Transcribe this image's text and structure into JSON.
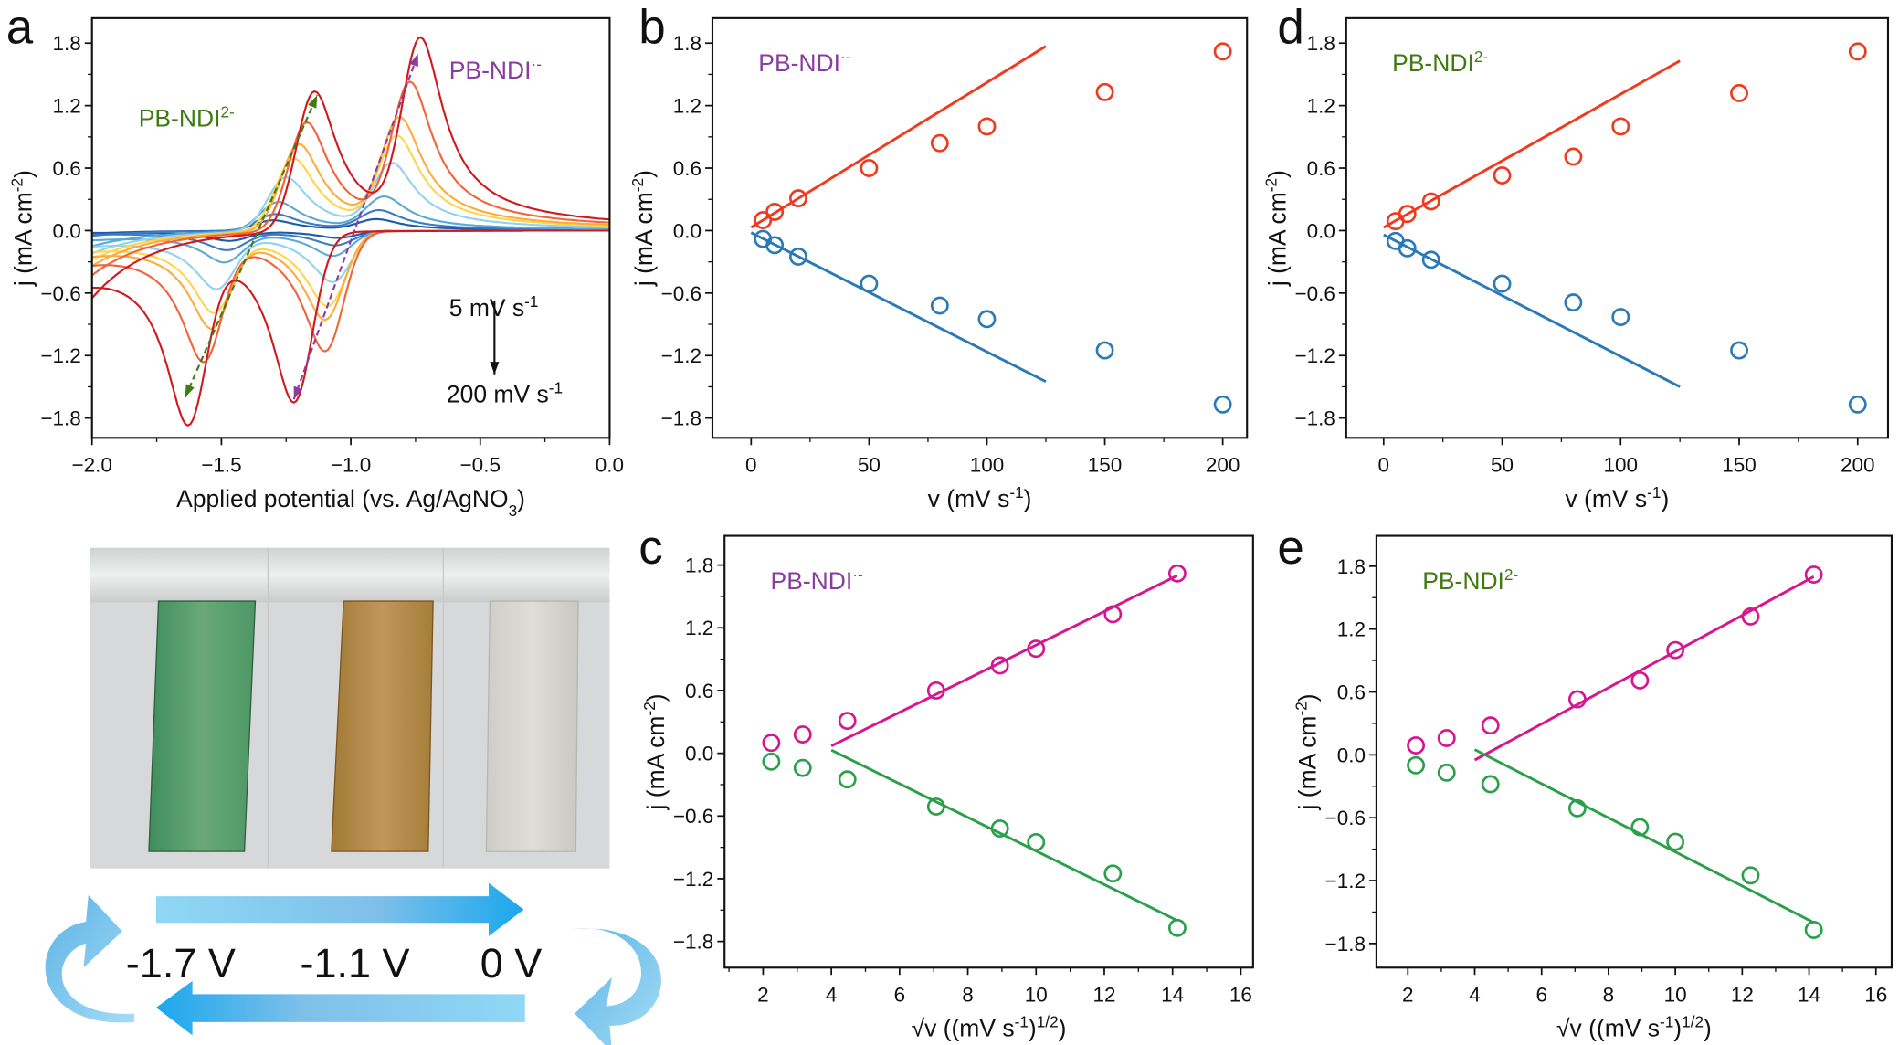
{
  "panel_letters": {
    "a": "a",
    "b": "b",
    "c": "c",
    "d": "d",
    "e": "e"
  },
  "photo": {
    "colors": {
      "reduced_2": "#4e9a6a",
      "reduced_1": "#b58a45",
      "neutral": "#d6d4cf"
    },
    "cycle_labels": [
      "-1.7 V",
      "-1.1 V",
      "0 V"
    ]
  },
  "chart_data": [
    {
      "id": "a",
      "type": "line",
      "title": "",
      "xlabel": {
        "text": "Applied potential (vs. Ag/AgNO",
        "sub": "3",
        "tail": ")"
      },
      "ylabel": {
        "text": "j (mA cm",
        "sup": "-2",
        "tail": ")"
      },
      "xlim": [
        -2.0,
        0.0
      ],
      "ylim": [
        -1.99,
        2.04
      ],
      "xticks": [
        -2.0,
        -1.5,
        -1.0,
        -0.5,
        0.0
      ],
      "xticklabels": [
        "−2.0",
        "−1.5",
        "−1.0",
        "−0.5",
        "0.0"
      ],
      "yticks": [
        1.8,
        1.2,
        0.6,
        0.0,
        -0.6,
        -1.2,
        -1.8
      ],
      "yticklabels": [
        "1.8",
        "1.2",
        "0.6",
        "0.0",
        "−0.6",
        "−1.2",
        "−1.8"
      ],
      "scan_rates_mV_s": [
        5,
        10,
        20,
        50,
        80,
        100,
        150,
        200
      ],
      "series_colors": [
        "#1f5aa6",
        "#3b7cc2",
        "#5aa9d9",
        "#8fd3ee",
        "#ffd54a",
        "#ffab3a",
        "#f2633a",
        "#d1181c"
      ],
      "anodic_peak1": {
        "E": [
          -1.3,
          -1.29,
          -1.28,
          -1.25,
          -1.22,
          -1.2,
          -1.17,
          -1.14
        ],
        "j": [
          0.1,
          0.16,
          0.28,
          0.52,
          0.7,
          0.84,
          1.05,
          1.35
        ]
      },
      "anodic_peak2": {
        "E": [
          -0.9,
          -0.89,
          -0.87,
          -0.84,
          -0.82,
          -0.81,
          -0.77,
          -0.73
        ],
        "j": [
          0.1,
          0.18,
          0.3,
          0.6,
          0.84,
          1.0,
          1.32,
          1.72
        ]
      },
      "cathodic_peak1": {
        "E": [
          -1.47,
          -1.48,
          -1.49,
          -1.52,
          -1.53,
          -1.54,
          -1.57,
          -1.63
        ],
        "j": [
          -0.09,
          -0.17,
          -0.27,
          -0.5,
          -0.7,
          -0.83,
          -1.12,
          -1.62
        ]
      },
      "cathodic_peak2": {
        "E": [
          -1.05,
          -1.06,
          -1.07,
          -1.07,
          -1.09,
          -1.1,
          -1.1,
          -1.22
        ],
        "j": [
          -0.07,
          -0.14,
          -0.24,
          -0.49,
          -0.72,
          -0.85,
          -1.15,
          -1.63
        ]
      },
      "start_current": [
        -0.03,
        -0.05,
        -0.15,
        -0.22,
        -0.28,
        -0.34,
        -0.43,
        -0.65
      ],
      "annotations": [
        {
          "text": "PB-NDI",
          "sup": "2-",
          "color": "#3f7a12",
          "at": [
            -1.82,
            1.0
          ]
        },
        {
          "text": "PB-NDI",
          "sup": "·-",
          "color": "#8a3d9e",
          "at": [
            -0.62,
            1.46
          ]
        },
        {
          "text": "5 mV s",
          "sup": "-1",
          "color": "#111111",
          "at": [
            -0.62,
            -0.82
          ]
        },
        {
          "text": "200 mV s",
          "sup": "-1",
          "color": "#111111",
          "at": [
            -0.63,
            -1.65
          ]
        }
      ],
      "arrows": [
        {
          "from": [
            -1.64,
            -1.6
          ],
          "to": [
            -1.13,
            1.3
          ],
          "color": "#3f7a12",
          "dashed": true
        },
        {
          "from": [
            -1.22,
            -1.62
          ],
          "to": [
            -0.74,
            1.7
          ],
          "color": "#8a3d9e",
          "dashed": true
        },
        {
          "from": [
            -0.445,
            -0.67
          ],
          "to": [
            -0.445,
            -1.38
          ],
          "color": "#111111",
          "dashed": false
        }
      ]
    },
    {
      "id": "b",
      "type": "scatter",
      "xlabel": {
        "text": "v (mV s",
        "sup": "-1",
        "tail": ")"
      },
      "ylabel": {
        "text": "j (mA cm",
        "sup": "-2",
        "tail": ")"
      },
      "xlim": [
        -16.4,
        210.3
      ],
      "ylim": [
        -1.99,
        2.04
      ],
      "xticks": [
        0,
        50,
        100,
        150,
        200
      ],
      "xticklabels": [
        "0",
        "50",
        "100",
        "150",
        "200"
      ],
      "yticks": [
        1.8,
        1.2,
        0.6,
        0.0,
        -0.6,
        -1.2,
        -1.8
      ],
      "yticklabels": [
        "1.8",
        "1.2",
        "0.6",
        "0.0",
        "−0.6",
        "−1.2",
        "−1.8"
      ],
      "annotation": {
        "text": "PB-NDI",
        "sup": "·-",
        "color": "#8a3d9e"
      },
      "x": [
        5,
        10,
        20,
        50,
        80,
        100,
        150,
        200
      ],
      "series": [
        {
          "name": "anodic",
          "color": "#f03a1f",
          "values": [
            0.1,
            0.18,
            0.31,
            0.6,
            0.84,
            1.0,
            1.33,
            1.72
          ],
          "fit": [
            [
              0,
              0.03
            ],
            [
              125,
              1.77
            ]
          ]
        },
        {
          "name": "cathodic",
          "color": "#2a7ab8",
          "values": [
            -0.08,
            -0.14,
            -0.25,
            -0.51,
            -0.72,
            -0.85,
            -1.15,
            -1.67
          ],
          "fit": [
            [
              0,
              -0.02
            ],
            [
              125,
              -1.45
            ]
          ]
        }
      ]
    },
    {
      "id": "c",
      "type": "scatter",
      "xlabel": {
        "text": "√v ((mV s",
        "sup": "-1",
        "tail": ")",
        "sup2": "1/2",
        "tail2": ")"
      },
      "ylabel": {
        "text": "j (mA cm",
        "sup": "-2",
        "tail": ")"
      },
      "xlim": [
        0.87,
        16.36
      ],
      "ylim": [
        -2.05,
        2.08
      ],
      "xticks": [
        2,
        4,
        6,
        8,
        10,
        12,
        14,
        16
      ],
      "xticklabels": [
        "2",
        "4",
        "6",
        "8",
        "10",
        "12",
        "14",
        "16"
      ],
      "yticks": [
        1.8,
        1.2,
        0.6,
        0.0,
        -0.6,
        -1.2,
        -1.8
      ],
      "yticklabels": [
        "1.8",
        "1.2",
        "0.6",
        "0.0",
        "−0.6",
        "−1.2",
        "−1.8"
      ],
      "annotation": {
        "text": "PB-NDI",
        "sup": "·-",
        "color": "#8a3d9e"
      },
      "x": [
        2.24,
        3.16,
        4.47,
        7.07,
        8.94,
        10.0,
        12.25,
        14.14
      ],
      "series": [
        {
          "name": "anodic",
          "color": "#d6168f",
          "values": [
            0.1,
            0.18,
            0.31,
            0.6,
            0.84,
            1.0,
            1.33,
            1.72
          ],
          "fit": [
            [
              4,
              0.07
            ],
            [
              14.14,
              1.7
            ]
          ]
        },
        {
          "name": "cathodic",
          "color": "#2aa04a",
          "values": [
            -0.08,
            -0.14,
            -0.25,
            -0.51,
            -0.72,
            -0.85,
            -1.15,
            -1.67
          ],
          "fit": [
            [
              4,
              0.03
            ],
            [
              14.14,
              -1.6
            ]
          ]
        }
      ]
    },
    {
      "id": "d",
      "type": "scatter",
      "xlabel": {
        "text": "v (mV s",
        "sup": "-1",
        "tail": ")"
      },
      "ylabel": {
        "text": "j (mA cm",
        "sup": "-2",
        "tail": ")"
      },
      "xlim": [
        -15.8,
        212.8
      ],
      "ylim": [
        -1.99,
        2.04
      ],
      "xticks": [
        0,
        50,
        100,
        150,
        200
      ],
      "xticklabels": [
        "0",
        "50",
        "100",
        "150",
        "200"
      ],
      "yticks": [
        1.8,
        1.2,
        0.6,
        0.0,
        -0.6,
        -1.2,
        -1.8
      ],
      "yticklabels": [
        "1.8",
        "1.2",
        "0.6",
        "0.0",
        "−0.6",
        "−1.2",
        "−1.8"
      ],
      "annotation": {
        "text": "PB-NDI",
        "sup": "2-",
        "color": "#3f7a12"
      },
      "x": [
        5,
        10,
        20,
        50,
        80,
        100,
        150,
        200
      ],
      "series": [
        {
          "name": "anodic",
          "color": "#f03a1f",
          "values": [
            0.09,
            0.16,
            0.28,
            0.53,
            0.71,
            1.0,
            1.32,
            1.72
          ],
          "fit": [
            [
              0,
              0.03
            ],
            [
              125,
              1.63
            ]
          ]
        },
        {
          "name": "cathodic",
          "color": "#2a7ab8",
          "values": [
            -0.1,
            -0.17,
            -0.28,
            -0.51,
            -0.69,
            -0.83,
            -1.15,
            -1.67
          ],
          "fit": [
            [
              0,
              -0.04
            ],
            [
              125,
              -1.5
            ]
          ]
        }
      ]
    },
    {
      "id": "e",
      "type": "scatter",
      "xlabel": {
        "text": "√v ((mV s",
        "sup": "-1",
        "tail": ")",
        "sup2": "1/2",
        "tail2": ")"
      },
      "ylabel": {
        "text": "j (mA cm",
        "sup": "-2",
        "tail": ")"
      },
      "xlim": [
        1.06,
        16.47
      ],
      "ylim": [
        -2.03,
        2.09
      ],
      "xticks": [
        2,
        4,
        6,
        8,
        10,
        12,
        14,
        16
      ],
      "xticklabels": [
        "2",
        "4",
        "6",
        "8",
        "10",
        "12",
        "14",
        "16"
      ],
      "yticks": [
        1.8,
        1.2,
        0.6,
        0.0,
        -0.6,
        -1.2,
        -1.8
      ],
      "yticklabels": [
        "1.8",
        "1.2",
        "0.6",
        "0.0",
        "−0.6",
        "−1.2",
        "−1.8"
      ],
      "annotation": {
        "text": "PB-NDI",
        "sup": "2-",
        "color": "#3f7a12"
      },
      "x": [
        2.24,
        3.16,
        4.47,
        7.07,
        8.94,
        10.0,
        12.25,
        14.14
      ],
      "series": [
        {
          "name": "anodic",
          "color": "#d6168f",
          "values": [
            0.09,
            0.16,
            0.28,
            0.53,
            0.71,
            1.0,
            1.32,
            1.72
          ],
          "fit": [
            [
              4,
              -0.05
            ],
            [
              14.14,
              1.7
            ]
          ]
        },
        {
          "name": "cathodic",
          "color": "#2aa04a",
          "values": [
            -0.1,
            -0.17,
            -0.28,
            -0.51,
            -0.69,
            -0.83,
            -1.15,
            -1.67
          ],
          "fit": [
            [
              4,
              0.05
            ],
            [
              14.14,
              -1.6
            ]
          ]
        }
      ]
    }
  ]
}
